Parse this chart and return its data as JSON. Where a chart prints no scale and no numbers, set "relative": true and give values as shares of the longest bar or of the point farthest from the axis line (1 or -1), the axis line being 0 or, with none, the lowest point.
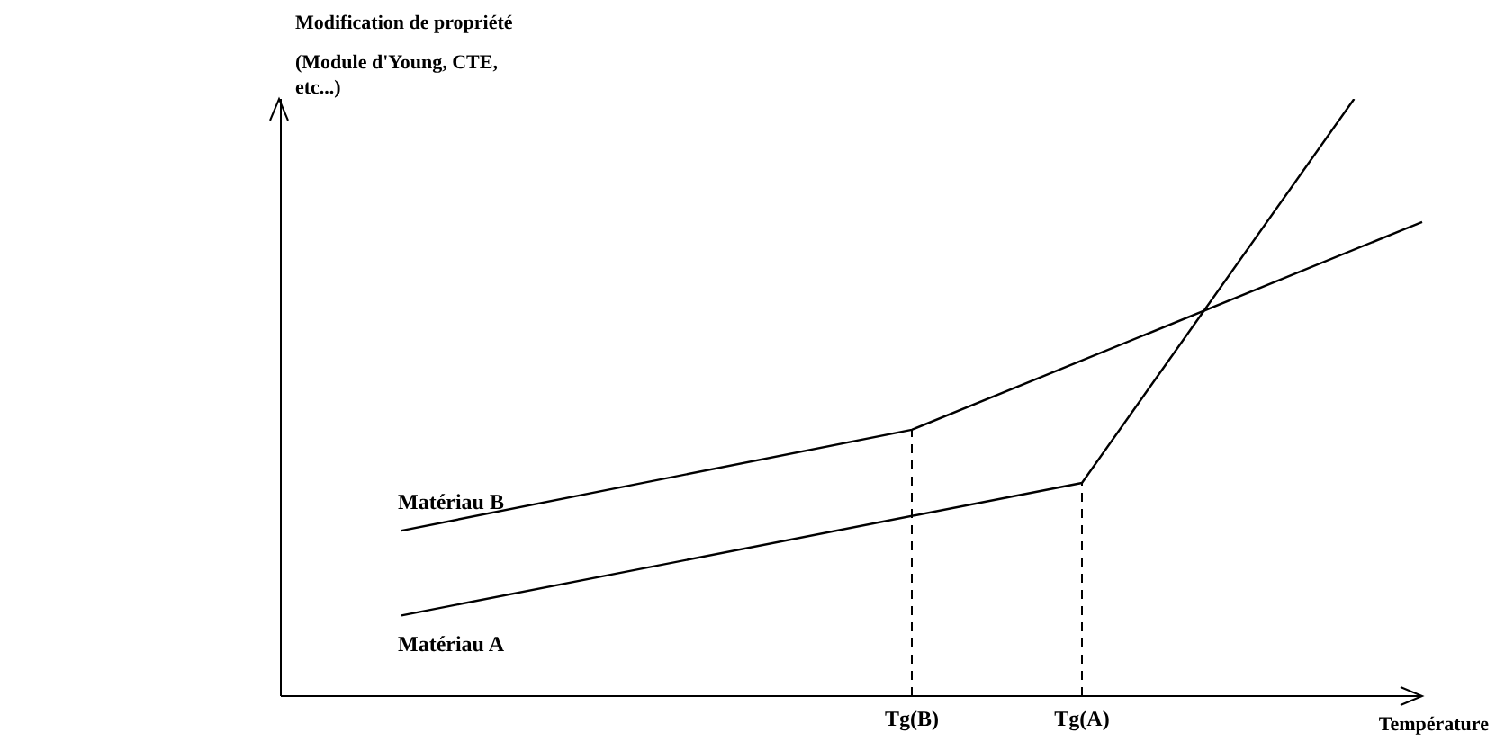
{
  "chart_data": {
    "type": "line",
    "relative": true,
    "ylabel": "Modification de propriété\n(Module d'Young, CTE, etc...)",
    "xlabel": "Température",
    "categories": [
      null,
      null,
      null,
      null,
      null,
      null,
      null,
      null,
      null,
      null,
      null,
      null,
      null,
      null,
      null,
      "Tg(B)",
      null,
      null,
      null,
      null,
      "Tg(A)",
      null,
      null,
      null,
      null,
      null,
      null,
      null,
      null,
      null,
      null
    ],
    "grid": false,
    "legend": false,
    "marker": "none",
    "line_style": "solid",
    "series": [
      {
        "name": "Matériau B",
        "color": "#000000",
        "values": [
          0.277,
          null,
          null,
          null,
          null,
          null,
          null,
          null,
          null,
          null,
          null,
          null,
          null,
          null,
          null,
          0.446,
          null,
          null,
          null,
          null,
          null,
          null,
          null,
          null,
          null,
          null,
          null,
          null,
          null,
          null,
          0.794
        ]
      },
      {
        "name": "Matériau A",
        "color": "#000000",
        "values": [
          0.135,
          null,
          null,
          null,
          null,
          null,
          null,
          null,
          null,
          null,
          null,
          null,
          null,
          null,
          null,
          null,
          null,
          null,
          null,
          null,
          0.357,
          null,
          null,
          null,
          null,
          null,
          null,
          null,
          1.0,
          null,
          null
        ]
      }
    ],
    "ref_lines": [
      {
        "axis": "x",
        "value": "Tg(B)",
        "line_style": "dashed",
        "color": "#000000"
      },
      {
        "axis": "x",
        "value": "Tg(A)",
        "line_style": "dashed",
        "color": "#000000"
      }
    ]
  }
}
